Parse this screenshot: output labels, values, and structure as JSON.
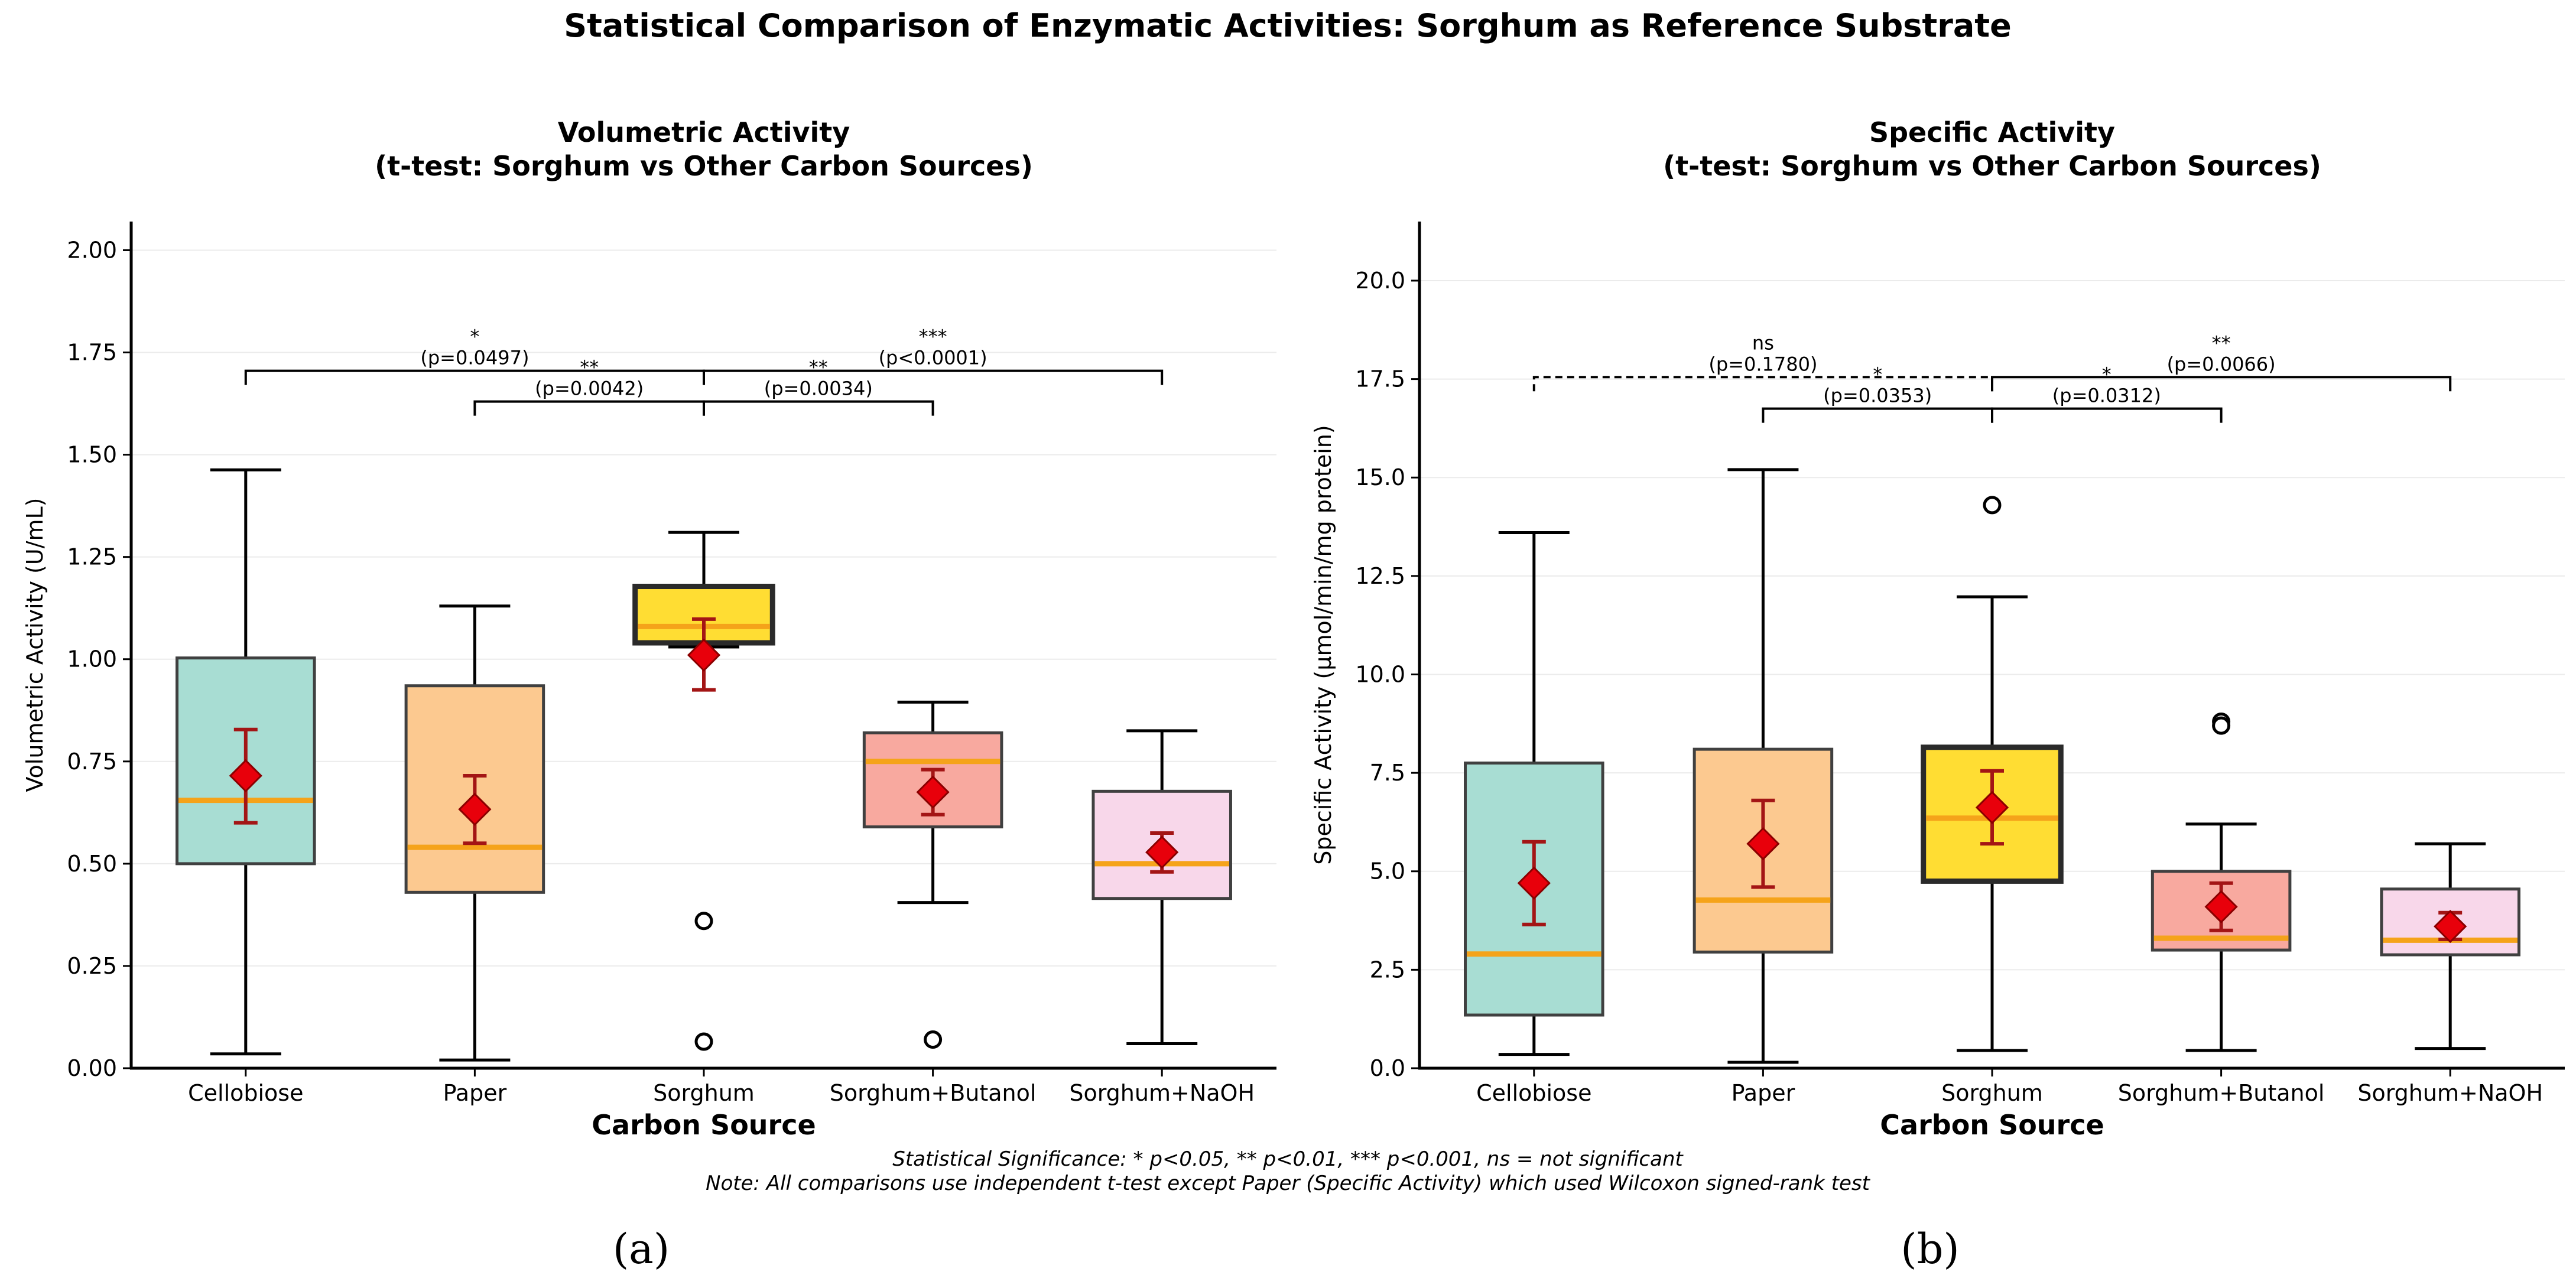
{
  "figure": {
    "suptitle": "Statistical Comparison of Enzymatic Activities: Sorghum as Reference Substrate",
    "note_line1": "Statistical Significance: * p<0.05, ** p<0.01, *** p<0.001, ns = not significant",
    "note_line2": "Note: All comparisons use independent t-test except Paper (Specific Activity) which used Wilcoxon signed-rank test"
  },
  "chart_data": [
    {
      "type": "box",
      "panel_label": "(a)",
      "title_line1": "Volumetric Activity",
      "title_line2": "(t-test: Sorghum vs Other Carbon Sources)",
      "xlabel": "Carbon Source",
      "ylabel": "Volumetric Activity (U/mL)",
      "ylim": [
        0,
        2.07
      ],
      "yticks": [
        0.0,
        0.25,
        0.5,
        0.75,
        1.0,
        1.25,
        1.5,
        1.75,
        2.0
      ],
      "ytick_labels": [
        "0.00",
        "0.25",
        "0.50",
        "0.75",
        "1.00",
        "1.25",
        "1.50",
        "1.75",
        "2.00"
      ],
      "grid": "horizontal, light",
      "categories": [
        "Cellobiose",
        "Paper",
        "Sorghum",
        "Sorghum+Butanol",
        "Sorghum+NaOH"
      ],
      "colors": [
        "#A8DDD3",
        "#FCC990",
        "#FFDD33",
        "#F8A99F",
        "#F8D7EA"
      ],
      "reference_index": 2,
      "boxes": [
        {
          "whisker_low": 0.035,
          "q1": 0.5,
          "median": 0.655,
          "q3": 1.003,
          "whisker_high": 1.463,
          "outliers": [],
          "mean": 0.715,
          "ci_low": 0.6,
          "ci_high": 0.828
        },
        {
          "whisker_low": 0.02,
          "q1": 0.43,
          "median": 0.54,
          "q3": 0.935,
          "whisker_high": 1.13,
          "outliers": [],
          "mean": 0.633,
          "ci_low": 0.55,
          "ci_high": 0.715
        },
        {
          "whisker_low": 1.03,
          "q1": 1.04,
          "median": 1.08,
          "q3": 1.178,
          "whisker_high": 1.31,
          "outliers": [
            0.36,
            0.065
          ],
          "mean": 1.01,
          "ci_low": 0.925,
          "ci_high": 1.098
        },
        {
          "whisker_low": 0.405,
          "q1": 0.59,
          "median": 0.75,
          "q3": 0.82,
          "whisker_high": 0.895,
          "outliers": [
            0.07
          ],
          "mean": 0.675,
          "ci_low": 0.62,
          "ci_high": 0.73
        },
        {
          "whisker_low": 0.06,
          "q1": 0.415,
          "median": 0.5,
          "q3": 0.677,
          "whisker_high": 0.825,
          "outliers": [],
          "mean": 0.528,
          "ci_low": 0.48,
          "ci_high": 0.575
        }
      ],
      "comparisons": [
        {
          "from": 0,
          "to": 2,
          "level": 1.705,
          "stars": "*",
          "p": "(p=0.0497)",
          "dashed": false
        },
        {
          "from": 1,
          "to": 2,
          "level": 1.63,
          "stars": "**",
          "p": "(p=0.0042)",
          "dashed": false
        },
        {
          "from": 2,
          "to": 3,
          "level": 1.63,
          "stars": "**",
          "p": "(p=0.0034)",
          "dashed": false
        },
        {
          "from": 2,
          "to": 4,
          "level": 1.705,
          "stars": "***",
          "p": "(p<0.0001)",
          "dashed": false
        }
      ]
    },
    {
      "type": "box",
      "panel_label": "(b)",
      "title_line1": "Specific Activity",
      "title_line2": "(t-test: Sorghum vs Other Carbon Sources)",
      "xlabel": "Carbon Source",
      "ylabel": "Specific Activity (μmol/min/mg protein)",
      "ylim": [
        0,
        21.5
      ],
      "yticks": [
        0.0,
        2.5,
        5.0,
        7.5,
        10.0,
        12.5,
        15.0,
        17.5,
        20.0
      ],
      "ytick_labels": [
        "0.0",
        "2.5",
        "5.0",
        "7.5",
        "10.0",
        "12.5",
        "15.0",
        "17.5",
        "20.0"
      ],
      "grid": "horizontal, light",
      "categories": [
        "Cellobiose",
        "Paper",
        "Sorghum",
        "Sorghum+Butanol",
        "Sorghum+NaOH"
      ],
      "colors": [
        "#A8DDD3",
        "#FCC990",
        "#FFDD33",
        "#F8A99F",
        "#F8D7EA"
      ],
      "reference_index": 2,
      "boxes": [
        {
          "whisker_low": 0.35,
          "q1": 1.35,
          "median": 2.9,
          "q3": 7.75,
          "whisker_high": 13.6,
          "outliers": [],
          "mean": 4.7,
          "ci_low": 3.65,
          "ci_high": 5.75
        },
        {
          "whisker_low": 0.15,
          "q1": 2.95,
          "median": 4.27,
          "q3": 8.1,
          "whisker_high": 15.2,
          "outliers": [],
          "mean": 5.7,
          "ci_low": 4.6,
          "ci_high": 6.8
        },
        {
          "whisker_low": 0.45,
          "q1": 4.75,
          "median": 6.35,
          "q3": 8.15,
          "whisker_high": 11.97,
          "outliers": [
            14.3
          ],
          "mean": 6.62,
          "ci_low": 5.7,
          "ci_high": 7.55
        },
        {
          "whisker_low": 0.45,
          "q1": 3.0,
          "median": 3.3,
          "q3": 5.0,
          "whisker_high": 6.2,
          "outliers": [
            8.8,
            8.7
          ],
          "mean": 4.1,
          "ci_low": 3.5,
          "ci_high": 4.7
        },
        {
          "whisker_low": 0.5,
          "q1": 2.88,
          "median": 3.25,
          "q3": 4.55,
          "whisker_high": 5.7,
          "outliers": [],
          "mean": 3.6,
          "ci_low": 3.27,
          "ci_high": 3.95
        }
      ],
      "comparisons": [
        {
          "from": 0,
          "to": 2,
          "level": 17.55,
          "stars": "ns",
          "p": "(p=0.1780)",
          "dashed": true
        },
        {
          "from": 1,
          "to": 2,
          "level": 16.75,
          "stars": "*",
          "p": "(p=0.0353)",
          "dashed": false
        },
        {
          "from": 2,
          "to": 3,
          "level": 16.75,
          "stars": "*",
          "p": "(p=0.0312)",
          "dashed": false
        },
        {
          "from": 2,
          "to": 4,
          "level": 17.55,
          "stars": "**",
          "p": "(p=0.0066)",
          "dashed": false
        }
      ]
    }
  ]
}
